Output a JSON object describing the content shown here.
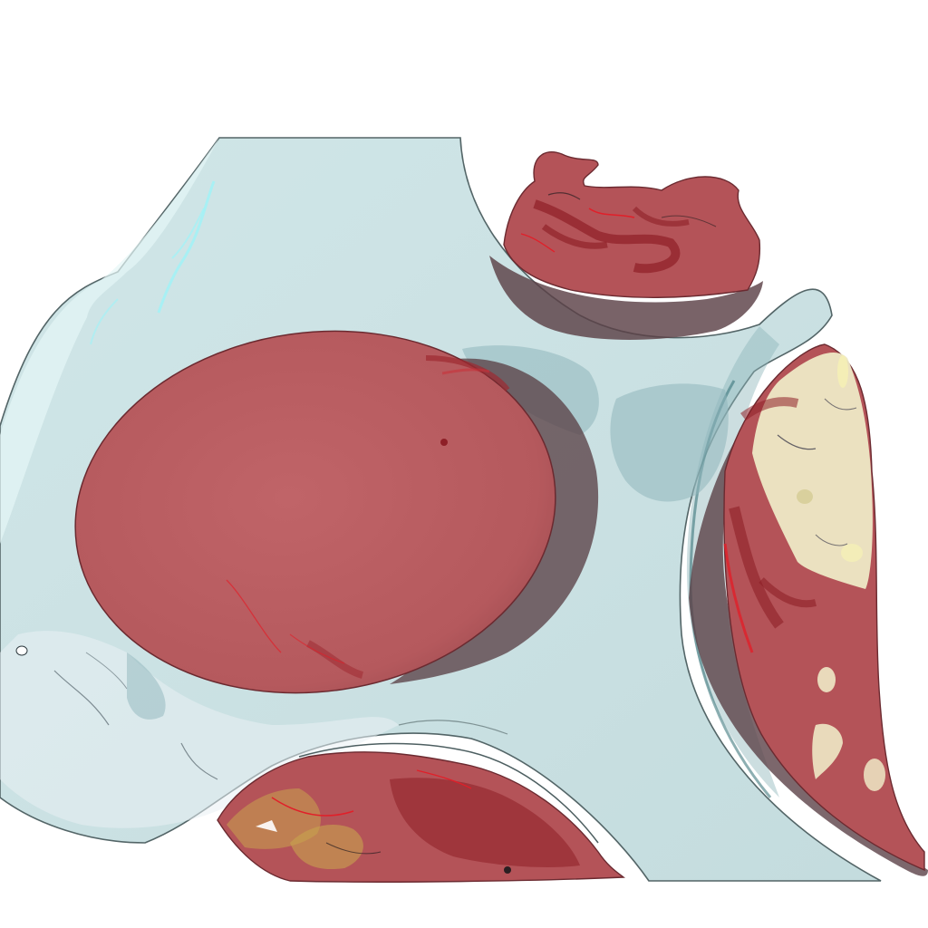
{
  "scene": {
    "background": "#ffffff",
    "colors": {
      "scaffold": "#c6dfe1",
      "scaffold_edge": "#4d5f61",
      "scaffold_highlight": "#9ff3f8",
      "cavity_shadow": "#8fb6bb",
      "tissue": "#b75a5e",
      "tissue_dark": "#8e1f27",
      "tissue_bright": "#e11f29",
      "tissue_shadow": "#5b4147",
      "mineral": "#eee9c6",
      "mineral_gold": "#c8a44e"
    }
  }
}
